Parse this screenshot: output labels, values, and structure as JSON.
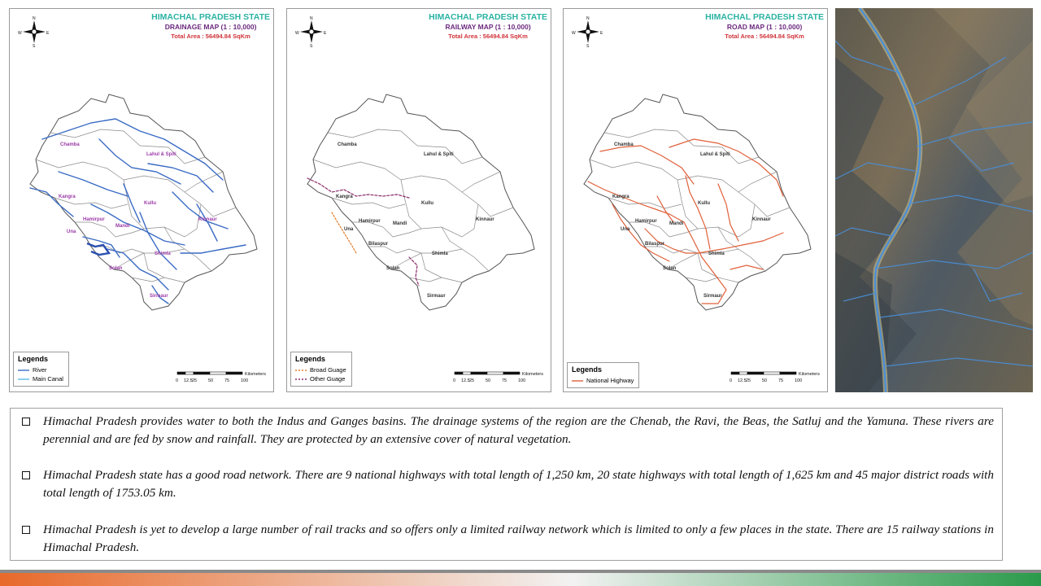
{
  "maps": [
    {
      "title": "HIMACHAL PRADESH STATE",
      "subtitle": "DRAINAGE MAP (1 : 10,000)",
      "area": "Total Area : 56494.84 SqKm",
      "legend_title": "Legends",
      "legend_items": [
        {
          "label": "River",
          "color": "#3a6bc4",
          "style": "solid"
        },
        {
          "label": "Main Canal",
          "color": "#5ab8e6",
          "style": "solid"
        }
      ],
      "district_label_color": "#9b3aa8",
      "districts": [
        "Chamba",
        "Lahul & Spiti",
        "Kangra",
        "Kullu",
        "Una",
        "Hamirpur",
        "Mandi",
        "Kinnaur",
        "Shimla",
        "Solan",
        "Sirmaur"
      ]
    },
    {
      "title": "HIMACHAL PRADESH STATE",
      "subtitle": "RAILWAY MAP (1 : 10,000)",
      "area": "Total Area : 56494.84 SqKm",
      "legend_title": "Legends",
      "legend_items": [
        {
          "label": "Broad Guage",
          "color": "#e07b2a",
          "style": "dashed"
        },
        {
          "label": "Other Guage",
          "color": "#8a2a6a",
          "style": "dashed"
        }
      ],
      "district_label_color": "#333333",
      "districts": [
        "Chamba",
        "Lahul & Spiti",
        "Kangra",
        "Kullu",
        "Kinnaur",
        "Una",
        "Hamirpur",
        "Mandi",
        "Bilaspur",
        "Shimla",
        "Solan",
        "Sirmaur"
      ]
    },
    {
      "title": "HIMACHAL PRADESH STATE",
      "subtitle": "ROAD MAP (1 : 10,000)",
      "area": "Total Area : 56494.84 SqKm",
      "legend_title": "Legends",
      "legend_items": [
        {
          "label": "National Highway",
          "color": "#e0603a",
          "style": "solid"
        }
      ],
      "district_label_color": "#333333",
      "districts": [
        "Chamba",
        "Lahul & Spiti",
        "Kangra",
        "Kullu",
        "Kinnaur",
        "Una",
        "Hamirpur",
        "Mandi",
        "Bilaspur",
        "Shimla",
        "Solan",
        "Sirmaur"
      ]
    }
  ],
  "compass": {
    "n": "N",
    "s": "S",
    "e": "E",
    "w": "W"
  },
  "scale": {
    "ticks": [
      "0",
      "12.5",
      "25",
      "50",
      "75",
      "100"
    ],
    "unit": "Kilometers"
  },
  "bullets": [
    "Himachal Pradesh provides water to both the Indus and Ganges basins. The drainage systems of the region are the Chenab, the Ravi, the Beas, the Satluj and the Yamuna. These rivers are perennial and are fed by snow and rainfall. They are protected by an extensive cover of natural vegetation.",
    "Himachal Pradesh state has a good road network. There are 9 national highways with total length of 1,250 km, 20 state highways with total length of 1,625 km and 45 major district roads with total length of 1753.05 km.",
    "Himachal Pradesh is yet to develop a large number of rail tracks and so offers only a limited railway network which is limited to only a few places in the state. There are 15 railway stations in Himachal Pradesh."
  ],
  "colors": {
    "footer_gradient": [
      "#e8692a",
      "#f2f2f2",
      "#2a9a4a"
    ]
  }
}
